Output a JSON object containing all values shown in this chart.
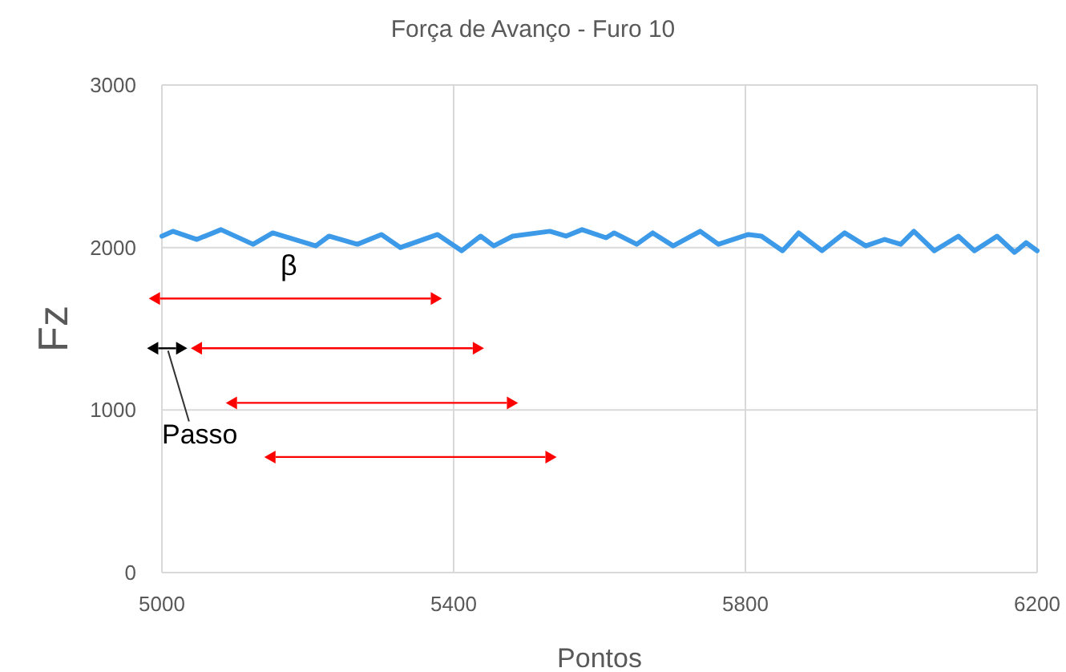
{
  "chart_data": {
    "type": "line",
    "title": "Força de Avanço - Furo 10",
    "xlabel": "Pontos",
    "ylabel": "Fz",
    "x": [
      5000,
      5015,
      5048,
      5081,
      5125,
      5152,
      5211,
      5229,
      5268,
      5301,
      5327,
      5378,
      5411,
      5437,
      5455,
      5481,
      5532,
      5554,
      5576,
      5609,
      5620,
      5651,
      5673,
      5701,
      5738,
      5763,
      5804,
      5822,
      5851,
      5873,
      5905,
      5936,
      5965,
      5991,
      6013,
      6031,
      6059,
      6092,
      6114,
      6145,
      6169,
      6185,
      6200
    ],
    "series": [
      {
        "color": "#3c9ae8",
        "values": [
          2070,
          2100,
          2050,
          2110,
          2020,
          2090,
          2010,
          2070,
          2020,
          2080,
          2000,
          2080,
          1980,
          2070,
          2010,
          2070,
          2100,
          2070,
          2110,
          2060,
          2090,
          2020,
          2090,
          2010,
          2100,
          2020,
          2080,
          2070,
          1980,
          2090,
          1980,
          2090,
          2010,
          2050,
          2020,
          2100,
          1980,
          2070,
          1980,
          2070,
          1970,
          2030,
          1980
        ]
      }
    ],
    "xlim": [
      5000,
      6200
    ],
    "xticks": [
      5000,
      5400,
      5800,
      6200
    ],
    "ylim": [
      0,
      3000
    ],
    "yticks": [
      0,
      1000,
      2000,
      3000
    ],
    "grid": true,
    "marker": "none",
    "line_style": "solid",
    "annotations": [
      "β",
      "Passo"
    ]
  }
}
